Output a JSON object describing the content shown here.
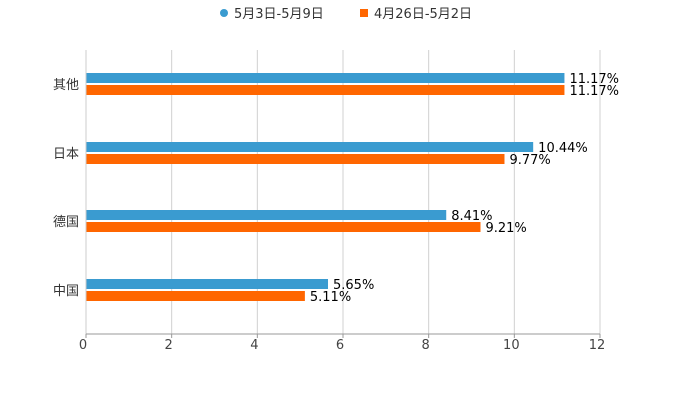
{
  "chart_data": {
    "type": "bar",
    "orientation": "horizontal",
    "categories": [
      "其他",
      "日本",
      "德国",
      "中国"
    ],
    "series": [
      {
        "name": "5月3日-5月9日",
        "color": "#3a9bd0",
        "values": [
          11.17,
          10.44,
          8.41,
          5.65
        ],
        "labels": [
          "11.17%",
          "10.44%",
          "8.41%",
          "5.65%"
        ]
      },
      {
        "name": "4月26日-5月2日",
        "color": "#ff6600",
        "values": [
          11.17,
          9.77,
          9.21,
          5.11
        ],
        "labels": [
          "11.17%",
          "9.77%",
          "9.21%",
          "5.11%"
        ]
      }
    ],
    "xlim": [
      0,
      12
    ],
    "xticks": [
      0,
      2,
      4,
      6,
      8,
      10,
      12
    ],
    "xtick_labels": [
      "0",
      "2",
      "4",
      "6",
      "8",
      "10",
      "12"
    ],
    "grid": true,
    "legend_position": "top-center",
    "title": "",
    "xlabel": "",
    "ylabel": ""
  }
}
